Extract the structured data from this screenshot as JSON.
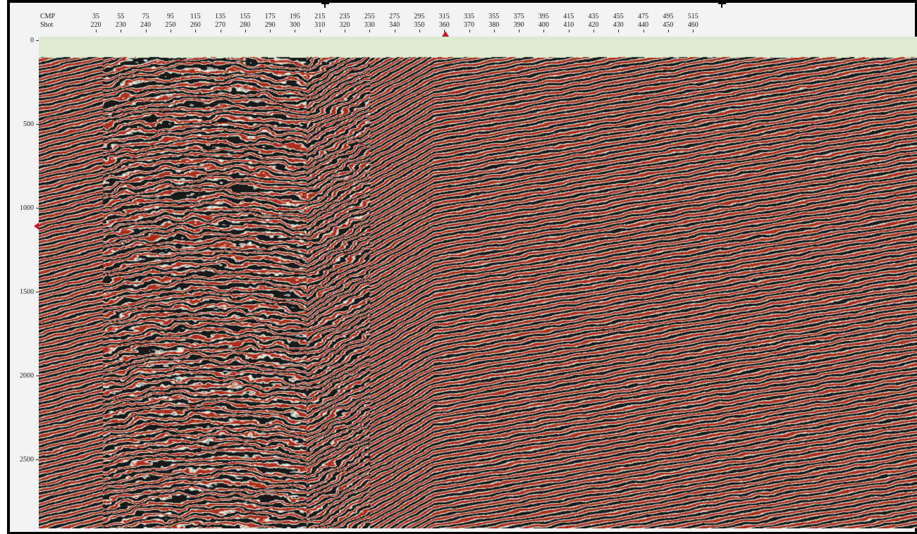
{
  "header": {
    "cmp_label": "CMP",
    "shot_label": "Shot"
  },
  "cmp_ticks": [
    "35",
    "55",
    "75",
    "95",
    "115",
    "135",
    "155",
    "175",
    "195",
    "215",
    "235",
    "255",
    "275",
    "295",
    "315",
    "335",
    "355",
    "375",
    "395",
    "415",
    "435",
    "455",
    "475",
    "495",
    "515"
  ],
  "shot_ticks": [
    "220",
    "230",
    "240",
    "250",
    "260",
    "270",
    "280",
    "290",
    "300",
    "310",
    "320",
    "330",
    "340",
    "350",
    "360",
    "370",
    "380",
    "390",
    "400",
    "410",
    "420",
    "430",
    "440",
    "450",
    "460"
  ],
  "time_axis": {
    "labels": [
      "0",
      "500",
      "1000",
      "1500",
      "2000",
      "2500"
    ]
  },
  "colors": {
    "positive_peak": "#b0301f",
    "negative_trough": "#141414",
    "background_tint": "#dcead0",
    "marker": "#c0182c"
  },
  "icons": [
    "cursor-cross-icon",
    "position-marker-icon"
  ]
}
